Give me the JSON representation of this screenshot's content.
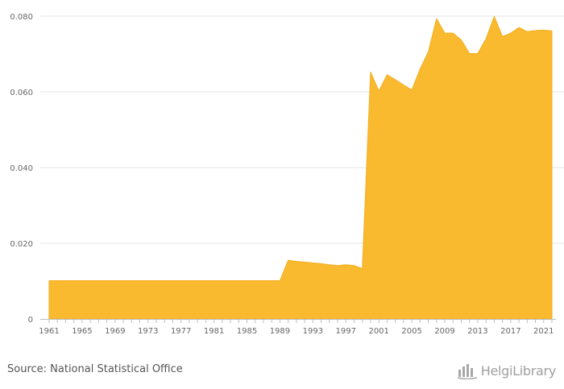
{
  "chart_data": {
    "type": "area",
    "color": "#f9ba2f",
    "x": [
      1961,
      1962,
      1963,
      1964,
      1965,
      1966,
      1967,
      1968,
      1969,
      1970,
      1971,
      1972,
      1973,
      1974,
      1975,
      1976,
      1977,
      1978,
      1979,
      1980,
      1981,
      1982,
      1983,
      1984,
      1985,
      1986,
      1987,
      1988,
      1989,
      1990,
      1991,
      1992,
      1993,
      1994,
      1995,
      1996,
      1997,
      1998,
      1999,
      2000,
      2001,
      2002,
      2003,
      2004,
      2005,
      2006,
      2007,
      2008,
      2009,
      2010,
      2011,
      2012,
      2013,
      2014,
      2015,
      2016,
      2017,
      2018,
      2019,
      2020,
      2021,
      2022
    ],
    "y": [
      0.0101,
      0.0101,
      0.0101,
      0.0101,
      0.0101,
      0.0101,
      0.0101,
      0.0101,
      0.0101,
      0.0101,
      0.0101,
      0.0101,
      0.0101,
      0.0101,
      0.0101,
      0.0101,
      0.0101,
      0.0101,
      0.0101,
      0.0101,
      0.0101,
      0.0101,
      0.0101,
      0.0101,
      0.0101,
      0.0101,
      0.0101,
      0.0101,
      0.0101,
      0.0155,
      0.0152,
      0.015,
      0.0148,
      0.0146,
      0.0143,
      0.0141,
      0.0143,
      0.0141,
      0.0133,
      0.0652,
      0.0602,
      0.0645,
      0.0632,
      0.0618,
      0.0605,
      0.066,
      0.0705,
      0.0793,
      0.0755,
      0.0755,
      0.0737,
      0.0701,
      0.0701,
      0.074,
      0.0799,
      0.0746,
      0.0755,
      0.077,
      0.0759,
      0.0762,
      0.0763,
      0.0761
    ],
    "yticks": [
      "0",
      "0.020",
      "0.040",
      "0.060",
      "0.080"
    ],
    "ytick_values": [
      0,
      0.02,
      0.04,
      0.06,
      0.08
    ],
    "xticks": [
      "1961",
      "1965",
      "1969",
      "1973",
      "1977",
      "1981",
      "1985",
      "1989",
      "1993",
      "1997",
      "2001",
      "2005",
      "2009",
      "2013",
      "2017",
      "2021"
    ],
    "xtick_values": [
      1961,
      1965,
      1969,
      1973,
      1977,
      1981,
      1985,
      1989,
      1993,
      1997,
      2001,
      2005,
      2009,
      2013,
      2017,
      2021
    ],
    "xlim": [
      1961,
      2022
    ],
    "ylim": [
      0,
      0.08
    ],
    "grid": true
  },
  "footer": {
    "source": "Source: National Statistical Office",
    "brand": "HelgiLibrary"
  }
}
